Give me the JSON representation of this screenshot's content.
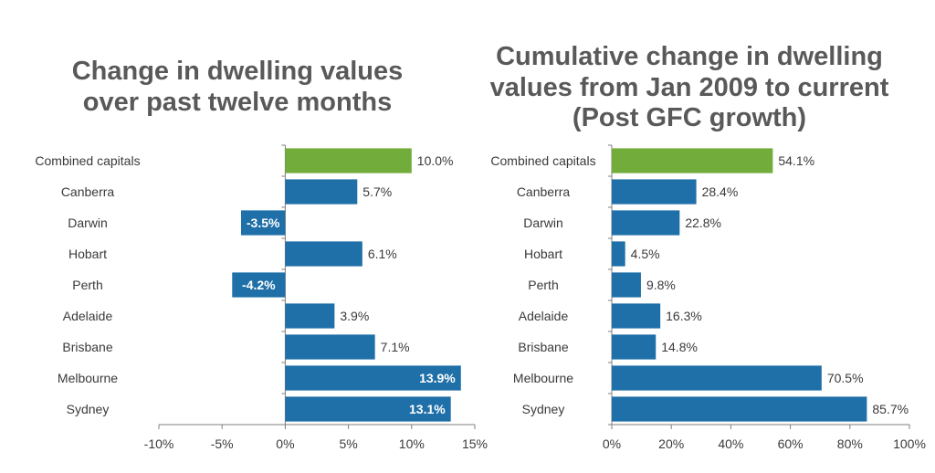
{
  "chart_data": [
    {
      "type": "bar",
      "orientation": "horizontal",
      "title": "Change in dwelling values over past twelve months",
      "categories": [
        "Combined capitals",
        "Canberra",
        "Darwin",
        "Hobart",
        "Perth",
        "Adelaide",
        "Brisbane",
        "Melbourne",
        "Sydney"
      ],
      "values": [
        10.0,
        5.7,
        -3.5,
        6.1,
        -4.2,
        3.9,
        7.1,
        13.9,
        13.1
      ],
      "value_labels": [
        "10.0%",
        "5.7%",
        "-3.5%",
        "6.1%",
        "-4.2%",
        "3.9%",
        "7.1%",
        "13.9%",
        "13.1%"
      ],
      "xlim": [
        -10,
        15
      ],
      "xticks": [
        -10,
        -5,
        0,
        5,
        10,
        15
      ],
      "xtick_labels": [
        "-10%",
        "-5%",
        "0%",
        "5%",
        "10%",
        "15%"
      ],
      "highlight_category": "Combined capitals",
      "grid": false,
      "colors": {
        "bar": "#1f6fa8",
        "highlight": "#72ad3c",
        "axis": "#7f7f7f",
        "label": "#3a3a3a"
      }
    },
    {
      "type": "bar",
      "orientation": "horizontal",
      "title": "Cumulative change in dwelling values from Jan 2009 to current (Post GFC growth)",
      "categories": [
        "Combined capitals",
        "Canberra",
        "Darwin",
        "Hobart",
        "Perth",
        "Adelaide",
        "Brisbane",
        "Melbourne",
        "Sydney"
      ],
      "values": [
        54.1,
        28.4,
        22.8,
        4.5,
        9.8,
        16.3,
        14.8,
        70.5,
        85.7
      ],
      "value_labels": [
        "54.1%",
        "28.4%",
        "22.8%",
        "4.5%",
        "9.8%",
        "16.3%",
        "14.8%",
        "70.5%",
        "85.7%"
      ],
      "xlim": [
        0,
        100
      ],
      "xticks": [
        0,
        20,
        40,
        60,
        80,
        100
      ],
      "xtick_labels": [
        "0%",
        "20%",
        "40%",
        "60%",
        "80%",
        "100%"
      ],
      "highlight_category": "Combined capitals",
      "grid": false,
      "colors": {
        "bar": "#1f6fa8",
        "highlight": "#72ad3c",
        "axis": "#7f7f7f",
        "label": "#3a3a3a"
      }
    }
  ]
}
